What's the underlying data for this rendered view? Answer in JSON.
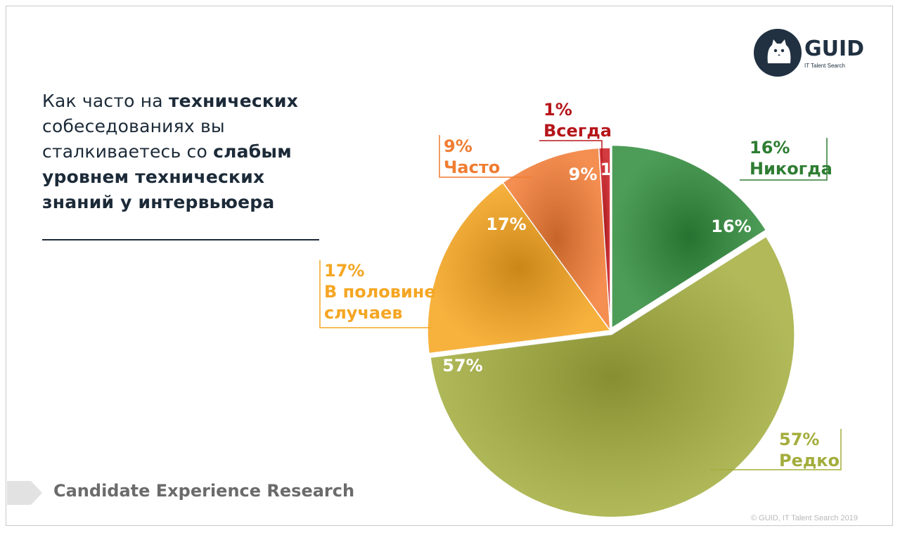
{
  "question": {
    "part1": "Как часто на ",
    "part2": "технических",
    "part3": " собеседованиях вы сталкиваетесь со ",
    "part4": "слабым уровнем технических знаний у интервьюера"
  },
  "logo": {
    "name": "GUID",
    "tagline": "IT Talent Search"
  },
  "footer": {
    "label": "Candidate Experience Research",
    "copyright": "© GUID, IT Talent Search 2019"
  },
  "colors": {
    "never": "#2e8b3a",
    "rarely": "#a3ad3c",
    "half": "#f6a41c",
    "often": "#f27a32",
    "always": "#cc1a1f"
  },
  "chart_data": {
    "type": "pie",
    "slices": [
      {
        "name": "Никогда",
        "value": 16,
        "inner_label": "16%",
        "outer_pct": "16%",
        "color": "#2e8b3a",
        "text_color": "#2e7d32"
      },
      {
        "name": "Редко",
        "value": 57,
        "inner_label": "57%",
        "outer_pct": "57%",
        "color": "#a3ad3c",
        "text_color": "#a3ad3c"
      },
      {
        "name": "В половине случаев",
        "value": 17,
        "inner_label": "17%",
        "outer_pct": "17%",
        "color": "#f6a41c",
        "text_color": "#f5a623"
      },
      {
        "name": "Часто",
        "value": 9,
        "inner_label": "9%",
        "outer_pct": "9%",
        "color": "#f27a32",
        "text_color": "#ef7d32"
      },
      {
        "name": "Всегда",
        "value": 1,
        "inner_label": "1",
        "outer_pct": "1%",
        "color": "#cc1a1f",
        "text_color": "#b5161b"
      }
    ]
  }
}
